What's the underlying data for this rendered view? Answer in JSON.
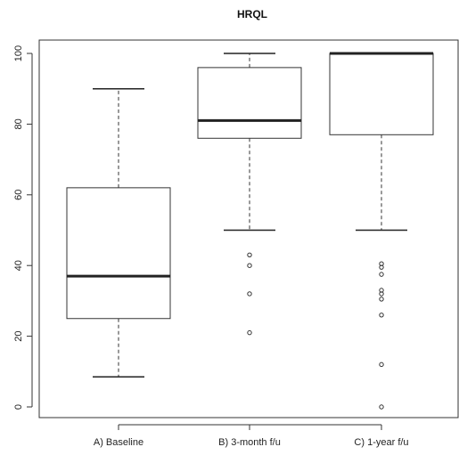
{
  "chart_data": {
    "type": "box",
    "title": "HRQL",
    "xlabel": "",
    "ylabel": "",
    "ylim": [
      0,
      100
    ],
    "yticks": [
      0,
      20,
      40,
      60,
      80,
      100
    ],
    "grid": false,
    "categories": [
      "A) Baseline",
      "B) 3-month f/u",
      "C) 1-year f/u"
    ],
    "boxes": [
      {
        "whisker_low": 8.5,
        "q1": 25,
        "median": 37,
        "q3": 62,
        "whisker_high": 90,
        "outliers": []
      },
      {
        "whisker_low": 50,
        "q1": 76,
        "median": 81,
        "q3": 96,
        "whisker_high": 100,
        "outliers": [
          43,
          40,
          32,
          21
        ]
      },
      {
        "whisker_low": 50,
        "q1": 77,
        "median": 100,
        "q3": 100,
        "whisker_high": 100,
        "outliers": [
          40.5,
          39.5,
          37.5,
          33,
          32,
          30.5,
          26,
          12,
          0
        ]
      }
    ]
  }
}
